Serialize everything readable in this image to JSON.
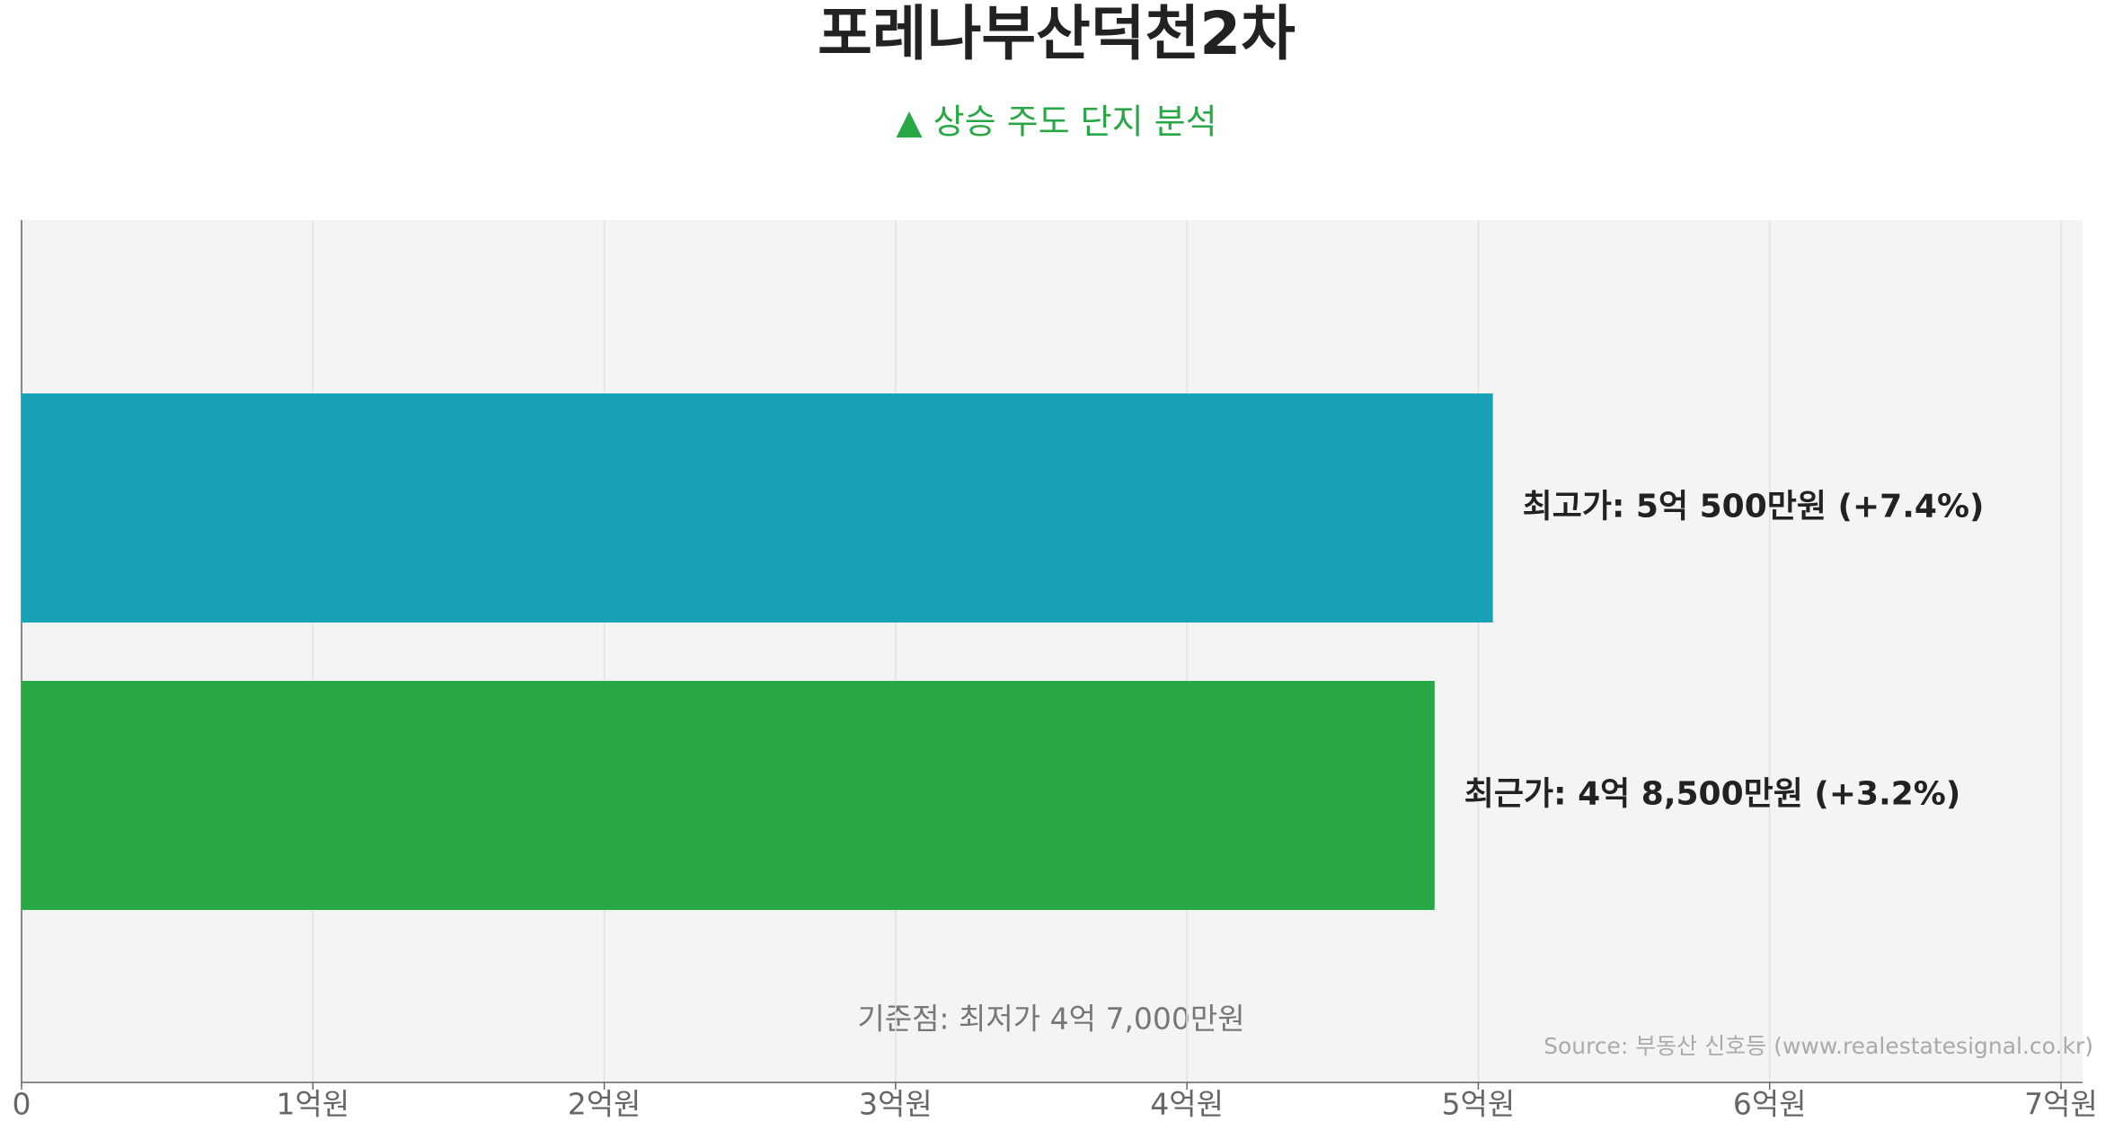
{
  "chart_data": {
    "type": "hbar",
    "title": "포레나부산덕천2차",
    "subtitle": "▲ 상승 주도 단지 분석",
    "values": [
      505000000,
      485000000
    ],
    "value_labels": [
      "최고가: 5억 500만원 (+7.4%)",
      "최근가: 4억 8,500만원 (+3.2%)"
    ],
    "colors": [
      "#17a2b8",
      "#28a745"
    ],
    "xlim": [
      0,
      700000000
    ],
    "xticks": [
      0,
      {
        "value": 100000000,
        "label": "1억원"
      },
      {
        "value": 200000000,
        "label": "2억원"
      },
      {
        "value": 300000000,
        "label": "3억원"
      },
      {
        "value": 400000000,
        "label": "4억원"
      },
      {
        "value": 500000000,
        "label": "5억원"
      },
      {
        "value": 600000000,
        "label": "6억원"
      },
      {
        "value": 700000000,
        "label": "7억원"
      }
    ],
    "grid": true,
    "annotation": "기준점: 최저가 4억 7,000만원",
    "source": "Source: 부동산 신호등 (www.realestatesignal.co.kr)"
  }
}
